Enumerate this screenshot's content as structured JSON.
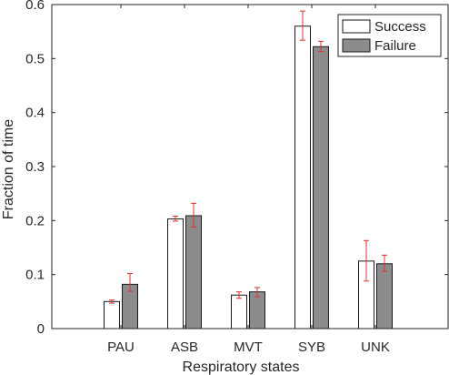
{
  "chart_data": {
    "type": "bar",
    "title": "",
    "xlabel": "Respiratory states",
    "ylabel": "Fraction of time",
    "categories": [
      "PAU",
      "ASB",
      "MVT",
      "SYB",
      "UNK"
    ],
    "ylim": [
      0,
      0.6
    ],
    "yticks": [
      0,
      0.1,
      0.2,
      0.3,
      0.4,
      0.5,
      0.6
    ],
    "ytick_labels": [
      "0",
      "0.1",
      "0.2",
      "0.3",
      "0.4",
      "0.5",
      "0.6"
    ],
    "grid": false,
    "legend_position": "top-right",
    "error_bar_color": "#e03030",
    "series": [
      {
        "name": "Success",
        "color": "#ffffff",
        "values": [
          0.05,
          0.203,
          0.062,
          0.56,
          0.125
        ],
        "err_low": [
          0.047,
          0.199,
          0.056,
          0.534,
          0.088
        ],
        "err_high": [
          0.053,
          0.208,
          0.068,
          0.588,
          0.163
        ]
      },
      {
        "name": "Failure",
        "color": "#8c8c8c",
        "values": [
          0.082,
          0.209,
          0.068,
          0.522,
          0.12
        ],
        "err_low": [
          0.069,
          0.188,
          0.059,
          0.513,
          0.106
        ],
        "err_high": [
          0.102,
          0.232,
          0.076,
          0.532,
          0.136
        ]
      }
    ]
  }
}
